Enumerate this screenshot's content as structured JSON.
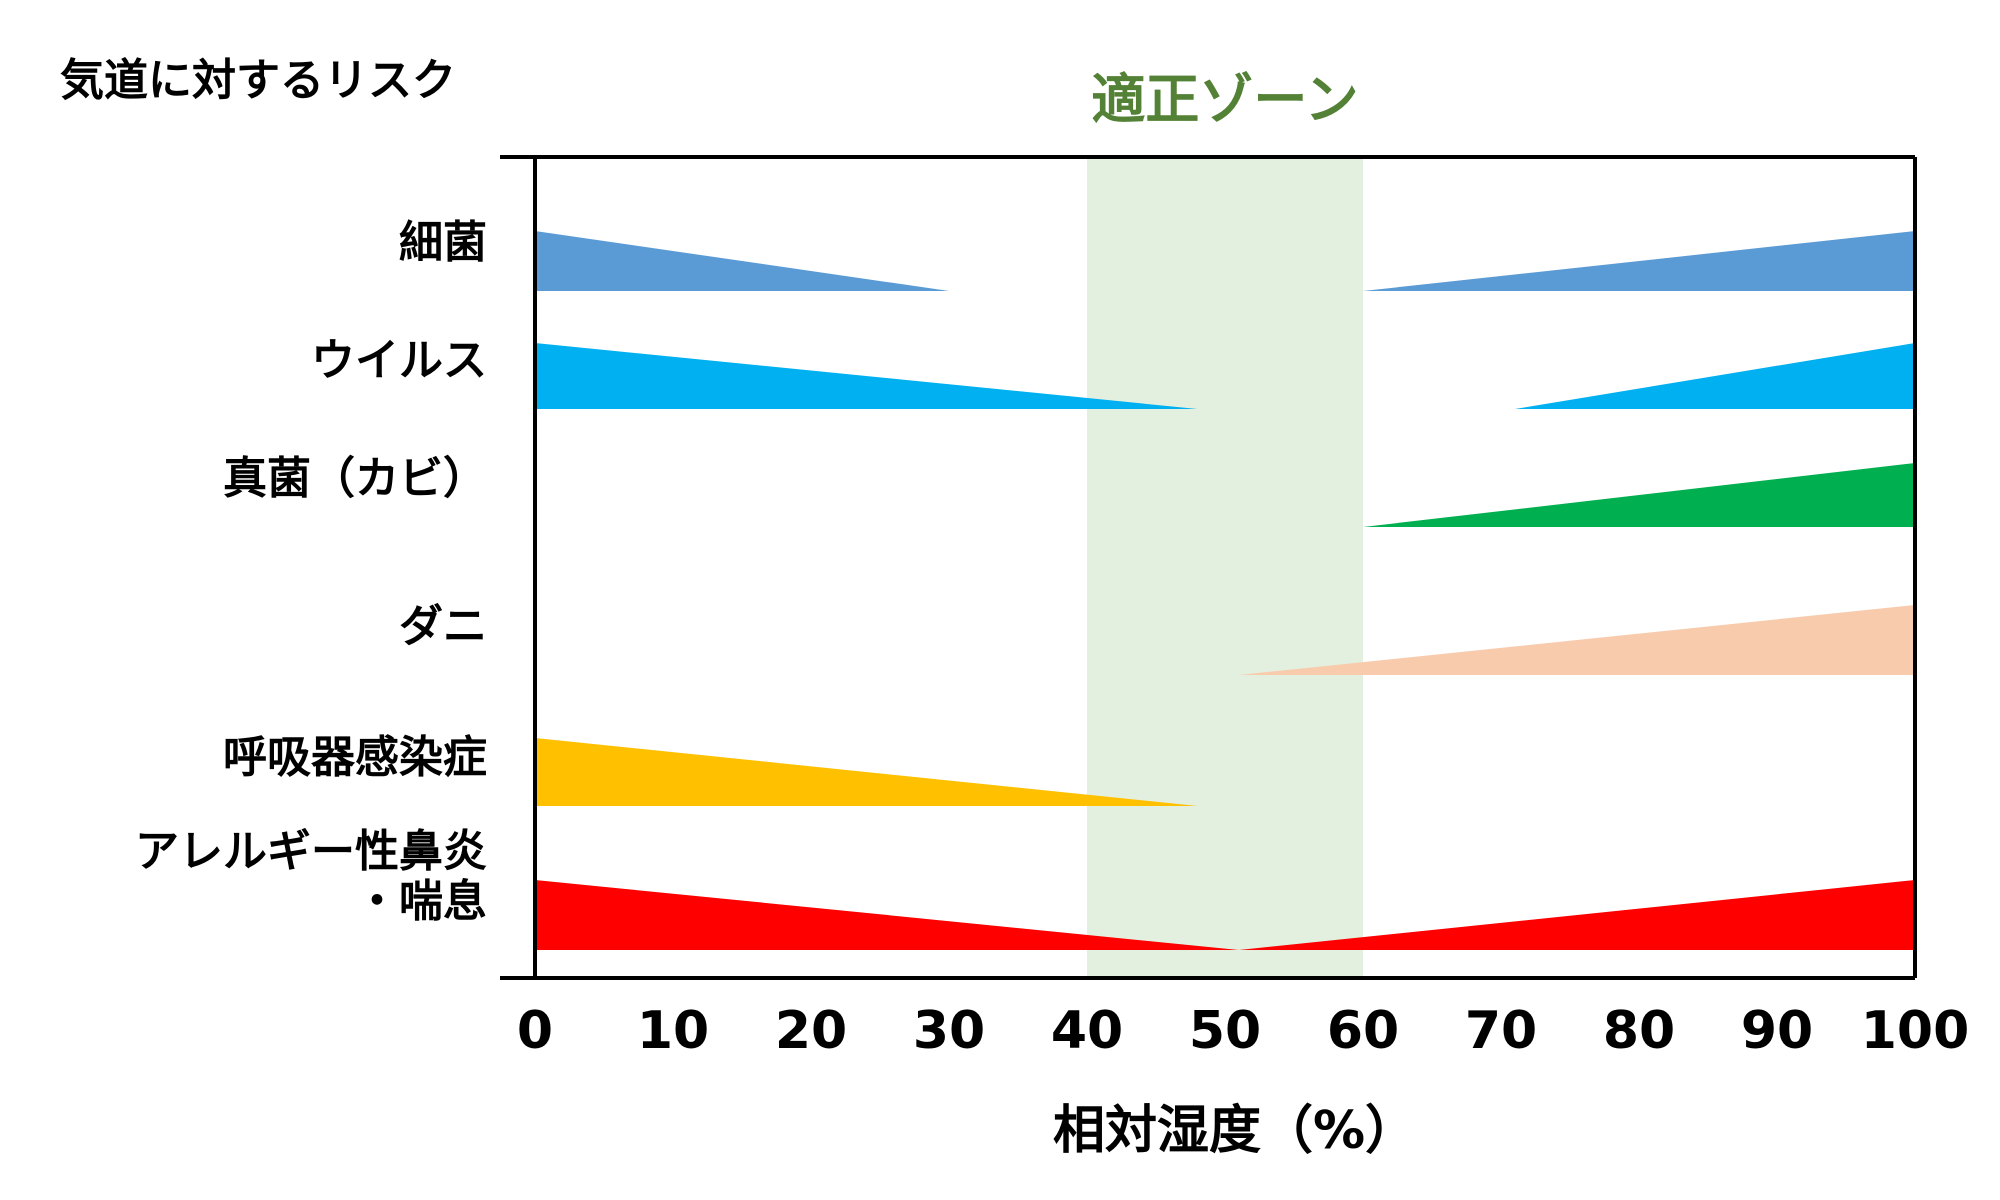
{
  "chart_data": {
    "type": "bar",
    "title": "気道に対するリスク",
    "zone_label": "適正ゾーン",
    "zone": [
      40,
      60
    ],
    "xlabel": "相対湿度（%）",
    "xlim": [
      0,
      100
    ],
    "xticks": [
      "0",
      "10",
      "20",
      "30",
      "40",
      "50",
      "60",
      "70",
      "80",
      "90",
      "100"
    ],
    "colors": {
      "zone": "#e4f0df",
      "zone_label": "#538135",
      "axis": "#000000"
    },
    "series": [
      {
        "label_lines": [
          "細菌"
        ],
        "color": "#5b9bd5",
        "segments": [
          {
            "from": 0,
            "to": 30
          },
          {
            "from": 60,
            "to": 100
          }
        ]
      },
      {
        "label_lines": [
          "ウイルス"
        ],
        "color": "#00b0f0",
        "segments": [
          {
            "from": 0,
            "to": 48
          },
          {
            "from": 71,
            "to": 100
          }
        ]
      },
      {
        "label_lines": [
          "真菌（カビ）"
        ],
        "color": "#00b050",
        "segments": [
          {
            "from": 60,
            "to": 100
          }
        ]
      },
      {
        "label_lines": [
          "ダニ"
        ],
        "color": "#f8cbad",
        "segments": [
          {
            "from": 51,
            "to": 100
          }
        ]
      },
      {
        "label_lines": [
          "呼吸器感染症"
        ],
        "color": "#ffc000",
        "segments": [
          {
            "from": 0,
            "to": 48
          }
        ]
      },
      {
        "label_lines": [
          "アレルギー性鼻炎",
          "・喘息"
        ],
        "color": "#ff0000",
        "segments": [
          {
            "from": 0,
            "to": 51
          },
          {
            "from": 51,
            "to": 100
          }
        ]
      }
    ]
  }
}
